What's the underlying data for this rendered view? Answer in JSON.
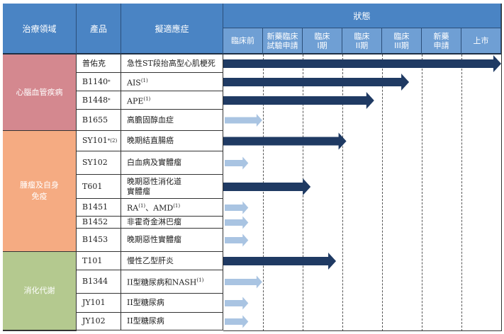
{
  "header": {
    "area": "治療領域",
    "product": "產品",
    "indication": "擬適應症",
    "status": "狀態"
  },
  "stages": [
    "臨床前",
    "新藥臨床\n試驗申請",
    "臨床\nI期",
    "臨床\nII期",
    "臨床\nIII期",
    "新藥\n申請",
    "上市"
  ],
  "colors": {
    "header": "#4a84c4",
    "subheader": "#6f9fd4",
    "arrow_dark": "#1f3a63",
    "arrow_light": "#a9c4e2"
  },
  "areas": [
    {
      "label": "心腦血管疾病",
      "color": "#d4888f"
    },
    {
      "label": "腫瘤及自身\n免疫",
      "color": "#f5ab82"
    },
    {
      "label": "消化代謝",
      "color": "#b4c98f"
    }
  ],
  "rows": [
    {
      "product": "普佑克",
      "product_sup": "",
      "indication": [
        {
          "t": "急性ST段抬高型心肌梗死"
        }
      ],
      "progress_stages": 7.0,
      "arrow": "dark"
    },
    {
      "product": "B1140",
      "product_sup": "*",
      "indication": [
        {
          "t": "AIS",
          "sup": "(1)"
        }
      ],
      "progress_stages": 4.68,
      "arrow": "dark"
    },
    {
      "product": "B1448",
      "product_sup": "*",
      "indication": [
        {
          "t": "APE",
          "sup": "(1)"
        }
      ],
      "progress_stages": 3.8,
      "arrow": "dark"
    },
    {
      "product": "B1655",
      "product_sup": "",
      "indication": [
        {
          "t": "高膽固醇血症"
        }
      ],
      "progress_stages": 0.98,
      "arrow": "light"
    },
    {
      "product": "SY101",
      "product_sup": "*(2)",
      "indication": [
        {
          "t": "晚期結直腸癌"
        }
      ],
      "progress_stages": 3.1,
      "arrow": "dark"
    },
    {
      "product": "SY102",
      "product_sup": "",
      "indication": [
        {
          "t": "白血病及實體瘤"
        }
      ],
      "progress_stages": 0.63,
      "arrow": "light"
    },
    {
      "product": "T601",
      "product_sup": "",
      "indication": [
        {
          "t": "晚期惡性消化道\n實體瘤"
        }
      ],
      "progress_stages": 2.2,
      "arrow": "dark"
    },
    {
      "product": "B1451",
      "product_sup": "",
      "indication": [
        {
          "t": "RA",
          "sup": "(1)"
        },
        {
          "t": "、AMD",
          "sup": "(1)"
        }
      ],
      "progress_stages": 0.63,
      "arrow": "light"
    },
    {
      "product": "B1452",
      "product_sup": "",
      "indication": [
        {
          "t": "非霍奇金淋巴瘤"
        }
      ],
      "progress_stages": 0.63,
      "arrow": "light"
    },
    {
      "product": "B1453",
      "product_sup": "",
      "indication": [
        {
          "t": "晚期惡性實體瘤"
        }
      ],
      "progress_stages": 0.63,
      "arrow": "light"
    },
    {
      "product": "T101",
      "product_sup": "",
      "indication": [
        {
          "t": "慢性乙型肝炎"
        }
      ],
      "progress_stages": 2.84,
      "arrow": "dark"
    },
    {
      "product": "B1344",
      "product_sup": "",
      "indication": [
        {
          "t": "II型糖尿病和NASH",
          "sup": "(1)"
        }
      ],
      "progress_stages": 0.98,
      "arrow": "light"
    },
    {
      "product": "JY101",
      "product_sup": "",
      "indication": [
        {
          "t": "II型糖尿病"
        }
      ],
      "progress_stages": 0.63,
      "arrow": "light"
    },
    {
      "product": "JY102",
      "product_sup": "",
      "indication": [
        {
          "t": "II型糖尿病"
        }
      ],
      "progress_stages": 0.63,
      "arrow": "light"
    }
  ]
}
